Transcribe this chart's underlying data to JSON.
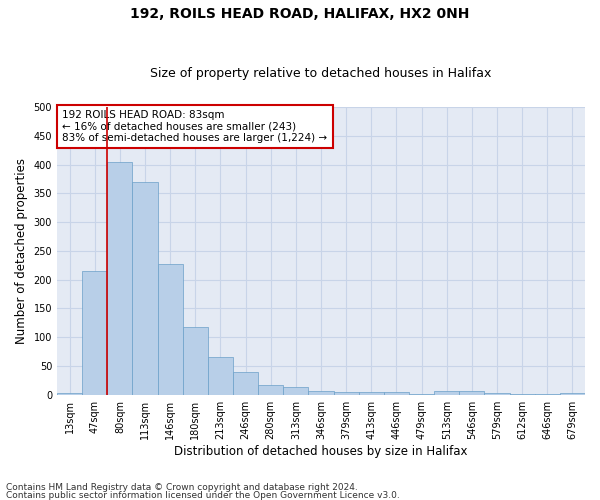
{
  "title1": "192, ROILS HEAD ROAD, HALIFAX, HX2 0NH",
  "title2": "Size of property relative to detached houses in Halifax",
  "xlabel": "Distribution of detached houses by size in Halifax",
  "ylabel": "Number of detached properties",
  "categories": [
    "13sqm",
    "47sqm",
    "80sqm",
    "113sqm",
    "146sqm",
    "180sqm",
    "213sqm",
    "246sqm",
    "280sqm",
    "313sqm",
    "346sqm",
    "379sqm",
    "413sqm",
    "446sqm",
    "479sqm",
    "513sqm",
    "546sqm",
    "579sqm",
    "612sqm",
    "646sqm",
    "679sqm"
  ],
  "values": [
    3,
    215,
    405,
    370,
    228,
    118,
    65,
    40,
    17,
    13,
    7,
    5,
    5,
    5,
    2,
    7,
    7,
    3,
    2,
    1,
    3
  ],
  "bar_color": "#b8cfe8",
  "bar_edge_color": "#6a9fc8",
  "bar_edge_width": 0.5,
  "vline_x_idx": 2,
  "vline_color": "#cc0000",
  "annotation_line1": "192 ROILS HEAD ROAD: 83sqm",
  "annotation_line2": "← 16% of detached houses are smaller (243)",
  "annotation_line3": "83% of semi-detached houses are larger (1,224) →",
  "annotation_box_color": "#cc0000",
  "ylim": [
    0,
    500
  ],
  "yticks": [
    0,
    50,
    100,
    150,
    200,
    250,
    300,
    350,
    400,
    450,
    500
  ],
  "grid_color": "#c8d4e8",
  "bg_color": "#e4eaf4",
  "footer1": "Contains HM Land Registry data © Crown copyright and database right 2024.",
  "footer2": "Contains public sector information licensed under the Open Government Licence v3.0.",
  "title1_fontsize": 10,
  "title2_fontsize": 9,
  "xlabel_fontsize": 8.5,
  "ylabel_fontsize": 8.5,
  "tick_fontsize": 7,
  "annot_fontsize": 7.5,
  "footer_fontsize": 6.5
}
